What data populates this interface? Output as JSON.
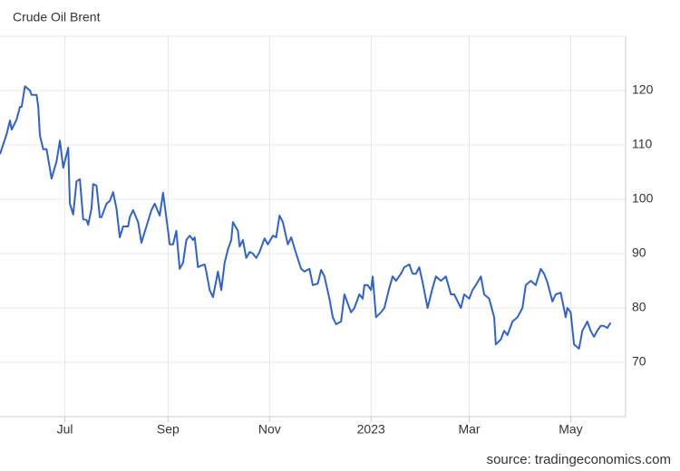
{
  "chart_data": {
    "type": "line",
    "title": "Crude Oil Brent",
    "source": "source: tradingeconomics.com",
    "x": [
      -39,
      -35,
      -33,
      -32,
      -29,
      -27,
      -26,
      -24,
      -21,
      -20,
      -17,
      -16,
      -15,
      -13,
      -11,
      -8,
      -5,
      -3,
      -1,
      2,
      3,
      5,
      7,
      9,
      11,
      13,
      14,
      16,
      17,
      19,
      21,
      22,
      25,
      27,
      29,
      31,
      33,
      35,
      38,
      39,
      41,
      44,
      46,
      49,
      52,
      54,
      57,
      59,
      62,
      63,
      65,
      67,
      69,
      71,
      73,
      75,
      77,
      78,
      80,
      82,
      84,
      85,
      87,
      89,
      92,
      94,
      96,
      98,
      100,
      101,
      104,
      105,
      107,
      109,
      111,
      113,
      115,
      117,
      120,
      122,
      125,
      127,
      129,
      131,
      134,
      136,
      139,
      142,
      144,
      147,
      149,
      152,
      154,
      156,
      159,
      161,
      163,
      166,
      168,
      171,
      172,
      174,
      177,
      179,
      180,
      182,
      184,
      185,
      187,
      190,
      192,
      195,
      197,
      199,
      202,
      204,
      207,
      209,
      211,
      213,
      215,
      218,
      221,
      223,
      226,
      229,
      232,
      234,
      238,
      240,
      243,
      245,
      247,
      250,
      252,
      255,
      258,
      259,
      262,
      264,
      266,
      269,
      272,
      275,
      277,
      280,
      283,
      286,
      288,
      290,
      293,
      295,
      298,
      301,
      302,
      304,
      306,
      309,
      311,
      314,
      316,
      318,
      320,
      322,
      324,
      326,
      328
    ],
    "series": [
      {
        "name": "Crude Oil Brent",
        "color": "#2f62d0",
        "values": [
          108.3,
          112,
          114.5,
          112.8,
          114.7,
          117,
          117,
          120.8,
          120,
          119.2,
          119.2,
          117,
          111.7,
          109.2,
          109.2,
          103.8,
          107,
          110.8,
          105.8,
          109.5,
          99.2,
          97.2,
          103.3,
          103.7,
          96.3,
          96.2,
          95.3,
          98.3,
          102.8,
          102.5,
          96.7,
          96.7,
          99.2,
          99.7,
          101.3,
          98.3,
          93,
          95,
          95,
          96.7,
          98,
          95.8,
          92,
          95,
          98,
          99.2,
          97,
          101.2,
          94.2,
          91.7,
          91.7,
          94.2,
          87.2,
          88.3,
          92.5,
          93.3,
          92.5,
          93,
          87.5,
          87.8,
          88,
          86.7,
          83.3,
          82,
          86.7,
          83.3,
          88.3,
          90.8,
          92.5,
          95.8,
          94.2,
          91.3,
          92.5,
          89.2,
          90.3,
          90,
          89.2,
          90.3,
          92.8,
          91.7,
          93.3,
          93,
          97,
          95.8,
          91.7,
          93,
          90,
          87.2,
          86.7,
          87.2,
          84.2,
          84.5,
          87,
          85.8,
          81.7,
          78.3,
          77,
          77.5,
          82.5,
          80,
          79.2,
          80,
          82.5,
          81.7,
          84.2,
          84.2,
          83.3,
          85.8,
          78.3,
          79.2,
          80,
          83.7,
          85.8,
          85,
          86.3,
          87.5,
          88,
          86.3,
          86.3,
          87.5,
          84.7,
          80,
          83.7,
          85.8,
          85,
          85.8,
          82.5,
          82.5,
          80,
          82.5,
          81.7,
          83.3,
          84.2,
          85.8,
          82.5,
          81.7,
          78.3,
          73.3,
          74.2,
          75.8,
          75,
          77.5,
          78.3,
          80,
          84.2,
          85,
          84.2,
          87.2,
          86.3,
          84.7,
          81.2,
          82.5,
          82.8,
          78.3,
          80,
          79.2,
          73.3,
          72.5,
          75.8,
          77.5,
          75.8,
          74.7,
          75.8,
          76.7,
          76.7,
          76.3,
          77.3
        ]
      }
    ],
    "xlim": [
      -39,
      337
    ],
    "xticks": [
      {
        "value": 0,
        "label": "Jul"
      },
      {
        "value": 62,
        "label": "Sep"
      },
      {
        "value": 123,
        "label": "Nov"
      },
      {
        "value": 184,
        "label": "2023"
      },
      {
        "value": 243,
        "label": "Mar"
      },
      {
        "value": 304,
        "label": "May"
      }
    ],
    "ylim": [
      60,
      130
    ],
    "yticks": [
      70,
      80,
      90,
      100,
      110,
      120
    ],
    "grid": true
  }
}
